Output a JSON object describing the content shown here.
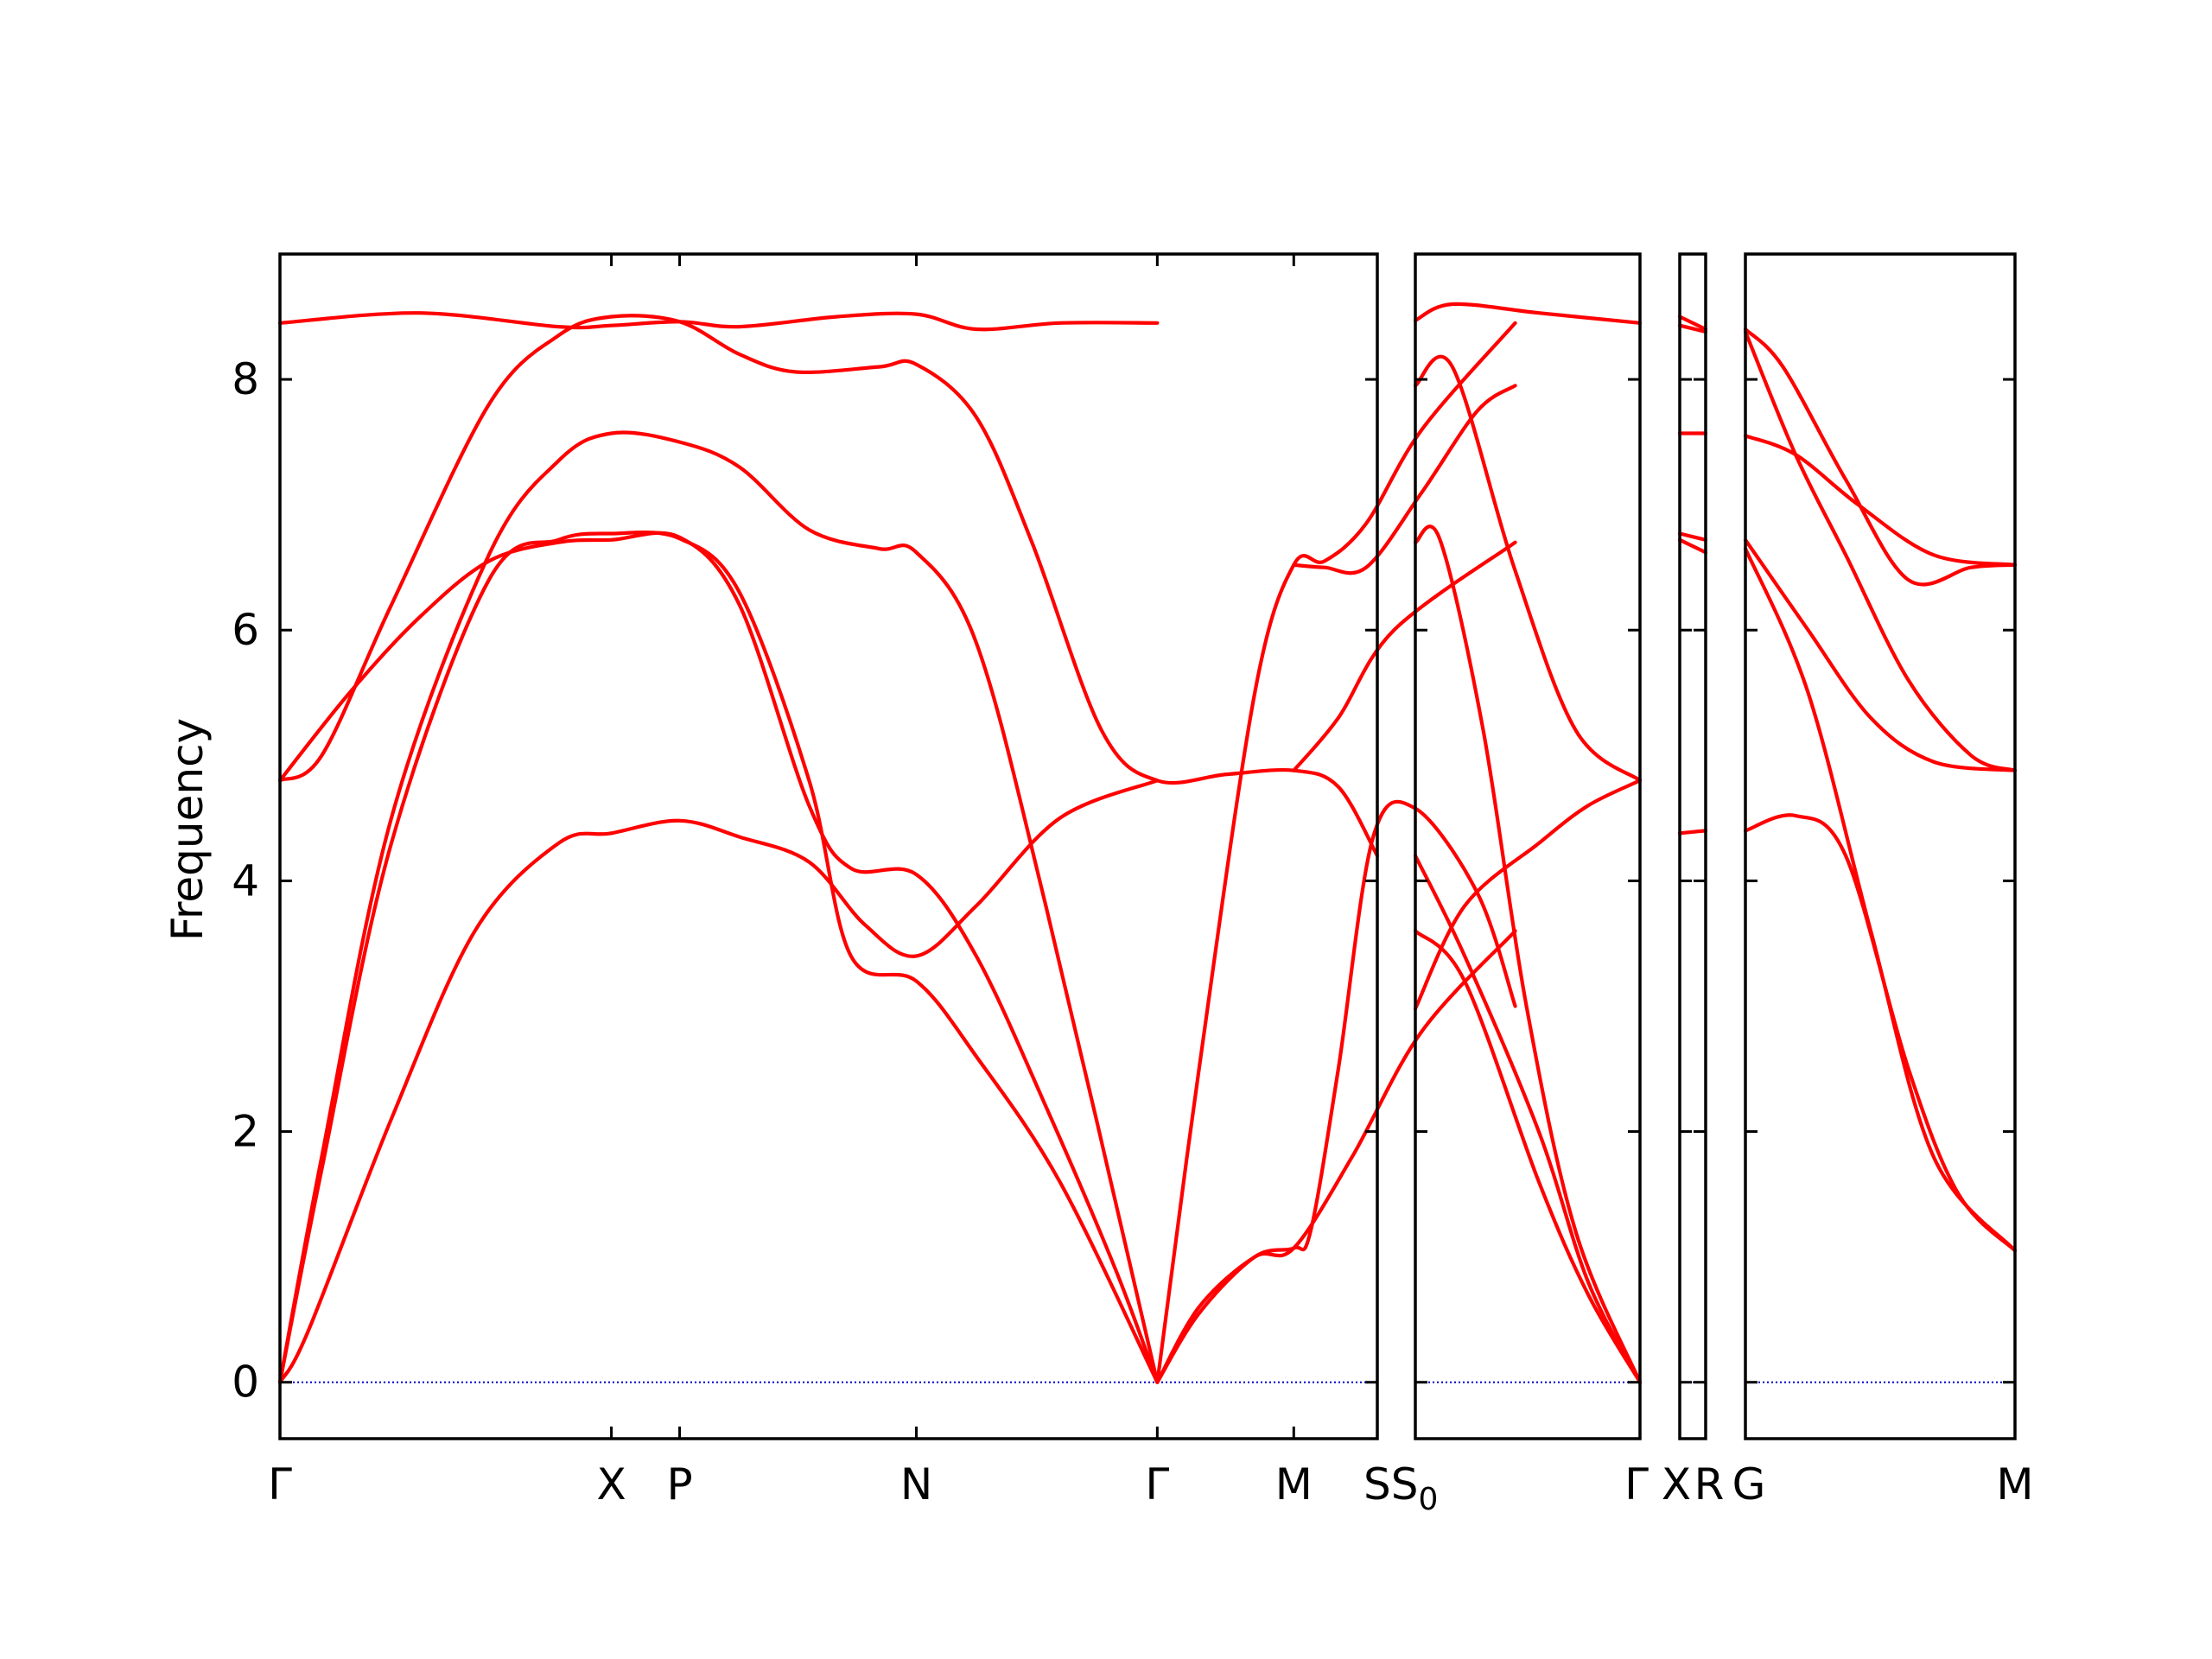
{
  "chart_data": {
    "type": "line",
    "title": "",
    "ylabel": "Frequency",
    "xlabel": "",
    "ylim": [
      -0.45,
      9.0
    ],
    "yticks": [
      0,
      2,
      4,
      6,
      8
    ],
    "grid": false,
    "line_color": "#ff0000",
    "zero_line_color": "#0000cc",
    "segments": [
      {
        "x_range": [
          0,
          7.88
        ],
        "tick_positions": [
          0,
          2.38,
          2.87,
          4.57,
          6.3,
          7.28
        ],
        "tick_labels": [
          "Γ",
          "X",
          "P",
          "N",
          "Γ",
          "M"
        ],
        "bands": [
          [
            [
              0,
              8.45
            ],
            [
              1.0,
              8.53
            ],
            [
              2.0,
              8.42
            ],
            [
              2.38,
              8.43
            ],
            [
              2.87,
              8.46
            ],
            [
              3.3,
              8.42
            ],
            [
              4.0,
              8.5
            ],
            [
              4.57,
              8.52
            ],
            [
              5.0,
              8.4
            ],
            [
              5.6,
              8.45
            ],
            [
              6.3,
              8.45
            ]
          ],
          [
            [
              0,
              4.8
            ],
            [
              0.3,
              5.0
            ],
            [
              0.8,
              6.2
            ],
            [
              1.5,
              7.8
            ],
            [
              2.0,
              8.35
            ],
            [
              2.38,
              8.5
            ],
            [
              2.87,
              8.46
            ],
            [
              3.3,
              8.2
            ],
            [
              3.7,
              8.06
            ],
            [
              4.3,
              8.1
            ],
            [
              4.57,
              8.12
            ],
            [
              5.0,
              7.7
            ],
            [
              5.4,
              6.7
            ],
            [
              5.9,
              5.2
            ],
            [
              6.3,
              4.8
            ],
            [
              6.8,
              4.85
            ],
            [
              7.28,
              4.88
            ],
            [
              7.6,
              4.75
            ],
            [
              7.88,
              4.2
            ]
          ],
          [
            [
              0,
              4.8
            ],
            [
              0.5,
              5.5
            ],
            [
              1.0,
              6.1
            ],
            [
              1.5,
              6.55
            ],
            [
              2.0,
              6.7
            ],
            [
              2.38,
              6.72
            ],
            [
              2.87,
              6.74
            ],
            [
              3.3,
              6.2
            ],
            [
              3.8,
              4.6
            ],
            [
              4.1,
              4.1
            ],
            [
              4.57,
              4.05
            ],
            [
              5.0,
              3.4
            ],
            [
              5.5,
              2.2
            ],
            [
              6.0,
              0.9
            ],
            [
              6.3,
              0
            ]
          ],
          [
            [
              0,
              0
            ],
            [
              0.3,
              1.7
            ],
            [
              0.8,
              4.3
            ],
            [
              1.5,
              6.4
            ],
            [
              2.0,
              6.72
            ],
            [
              2.38,
              6.77
            ],
            [
              2.87,
              6.73
            ],
            [
              3.3,
              6.3
            ],
            [
              3.8,
              4.8
            ],
            [
              4.1,
              3.4
            ],
            [
              4.57,
              3.2
            ],
            [
              5.0,
              2.6
            ],
            [
              5.6,
              1.6
            ],
            [
              6.3,
              0
            ]
          ],
          [
            [
              0,
              0
            ],
            [
              0.3,
              1.8
            ],
            [
              0.8,
              4.5
            ],
            [
              1.5,
              6.6
            ],
            [
              2.0,
              7.35
            ],
            [
              2.38,
              7.57
            ],
            [
              2.87,
              7.5
            ],
            [
              3.3,
              7.3
            ],
            [
              3.8,
              6.8
            ],
            [
              4.3,
              6.65
            ],
            [
              4.57,
              6.62
            ],
            [
              5.0,
              5.9
            ],
            [
              5.5,
              3.8
            ],
            [
              6.3,
              0
            ]
          ],
          [
            [
              0,
              0
            ],
            [
              0.2,
              0.4
            ],
            [
              0.8,
              2.1
            ],
            [
              1.4,
              3.6
            ],
            [
              2.0,
              4.3
            ],
            [
              2.38,
              4.38
            ],
            [
              2.87,
              4.48
            ],
            [
              3.3,
              4.35
            ],
            [
              3.8,
              4.15
            ],
            [
              4.2,
              3.65
            ],
            [
              4.57,
              3.4
            ],
            [
              5.0,
              3.8
            ],
            [
              5.6,
              4.5
            ],
            [
              6.3,
              4.8
            ]
          ],
          [
            [
              6.3,
              0
            ],
            [
              6.6,
              0.55
            ],
            [
              7.0,
              1.0
            ],
            [
              7.28,
              1.07
            ],
            [
              7.4,
              1.2
            ],
            [
              7.6,
              2.5
            ],
            [
              7.85,
              4.35
            ],
            [
              8.15,
              4.58
            ],
            [
              8.6,
              3.9
            ],
            [
              8.87,
              3.0
            ]
          ],
          [
            [
              6.3,
              0
            ],
            [
              6.6,
              0.6
            ],
            [
              7.0,
              1.0
            ],
            [
              7.28,
              1.07
            ],
            [
              7.7,
              1.8
            ],
            [
              8.2,
              2.8
            ],
            [
              8.87,
              3.6
            ]
          ],
          [
            [
              6.3,
              0
            ],
            [
              6.6,
              2.5
            ],
            [
              7.0,
              5.5
            ],
            [
              7.28,
              6.52
            ],
            [
              7.5,
              6.55
            ],
            [
              7.8,
              6.85
            ],
            [
              8.2,
              7.6
            ],
            [
              8.87,
              8.45
            ]
          ],
          [
            [
              7.28,
              6.52
            ],
            [
              7.5,
              6.5
            ],
            [
              7.8,
              6.5
            ],
            [
              8.2,
              7.1
            ],
            [
              8.6,
              7.75
            ],
            [
              8.87,
              7.95
            ]
          ],
          [
            [
              7.28,
              4.88
            ],
            [
              7.6,
              5.3
            ],
            [
              8.0,
              6.0
            ],
            [
              8.87,
              6.7
            ]
          ]
        ]
      },
      {
        "x_range": [
          0,
          1.82
        ],
        "tick_positions": [
          0,
          1.82
        ],
        "tick_labels": [
          "S|S0",
          "Γ"
        ],
        "bands": [
          [
            [
              0,
              8.47
            ],
            [
              0.3,
              8.6
            ],
            [
              1.0,
              8.53
            ],
            [
              1.82,
              8.45
            ]
          ],
          [
            [
              0,
              7.95
            ],
            [
              0.3,
              8.1
            ],
            [
              0.8,
              6.5
            ],
            [
              1.3,
              5.2
            ],
            [
              1.82,
              4.8
            ]
          ],
          [
            [
              0,
              6.7
            ],
            [
              0.2,
              6.72
            ],
            [
              0.55,
              5.2
            ],
            [
              0.9,
              3.0
            ],
            [
              1.3,
              1.2
            ],
            [
              1.82,
              0
            ]
          ],
          [
            [
              0,
              2.98
            ],
            [
              0.4,
              3.8
            ],
            [
              1.0,
              4.3
            ],
            [
              1.4,
              4.6
            ],
            [
              1.82,
              4.8
            ]
          ],
          [
            [
              0,
              4.2
            ],
            [
              0.4,
              3.4
            ],
            [
              1.0,
              2.0
            ],
            [
              1.4,
              0.8
            ],
            [
              1.82,
              0
            ]
          ],
          [
            [
              0,
              3.6
            ],
            [
              0.4,
              3.2
            ],
            [
              1.0,
              1.6
            ],
            [
              1.4,
              0.7
            ],
            [
              1.82,
              0
            ]
          ]
        ]
      },
      {
        "x_range": [
          0,
          0.2
        ],
        "tick_positions": [
          0,
          0.2
        ],
        "tick_labels": [
          "X",
          "R"
        ],
        "bands": [
          [
            [
              0,
              8.5
            ],
            [
              0.2,
              8.4
            ]
          ],
          [
            [
              0,
              8.43
            ],
            [
              0.2,
              8.38
            ]
          ],
          [
            [
              0,
              7.57
            ],
            [
              0.2,
              7.57
            ]
          ],
          [
            [
              0,
              6.77
            ],
            [
              0.2,
              6.72
            ]
          ],
          [
            [
              0,
              6.72
            ],
            [
              0.2,
              6.62
            ]
          ],
          [
            [
              0,
              4.38
            ],
            [
              0.2,
              4.4
            ]
          ]
        ]
      },
      {
        "x_range": [
          0,
          2.15
        ],
        "tick_positions": [
          0,
          2.15
        ],
        "tick_labels": [
          "G",
          "M"
        ],
        "bands": [
          [
            [
              0,
              8.4
            ],
            [
              0.3,
              8.1
            ],
            [
              0.8,
              7.2
            ],
            [
              1.3,
              6.4
            ],
            [
              1.8,
              6.5
            ],
            [
              2.15,
              6.52
            ]
          ],
          [
            [
              0,
              8.38
            ],
            [
              0.4,
              7.4
            ],
            [
              0.8,
              6.6
            ],
            [
              1.3,
              5.6
            ],
            [
              1.8,
              5.0
            ],
            [
              2.15,
              4.88
            ]
          ],
          [
            [
              0,
              7.55
            ],
            [
              0.4,
              7.4
            ],
            [
              0.9,
              7.0
            ],
            [
              1.5,
              6.6
            ],
            [
              2.15,
              6.52
            ]
          ],
          [
            [
              0,
              6.72
            ],
            [
              0.5,
              6.0
            ],
            [
              1.0,
              5.3
            ],
            [
              1.5,
              4.95
            ],
            [
              2.15,
              4.88
            ]
          ],
          [
            [
              0,
              6.65
            ],
            [
              0.5,
              5.5
            ],
            [
              1.0,
              3.6
            ],
            [
              1.5,
              1.8
            ],
            [
              2.15,
              1.05
            ]
          ],
          [
            [
              0,
              4.4
            ],
            [
              0.4,
              4.52
            ],
            [
              0.8,
              4.2
            ],
            [
              1.3,
              2.5
            ],
            [
              1.7,
              1.5
            ],
            [
              2.15,
              1.05
            ]
          ]
        ]
      }
    ]
  }
}
